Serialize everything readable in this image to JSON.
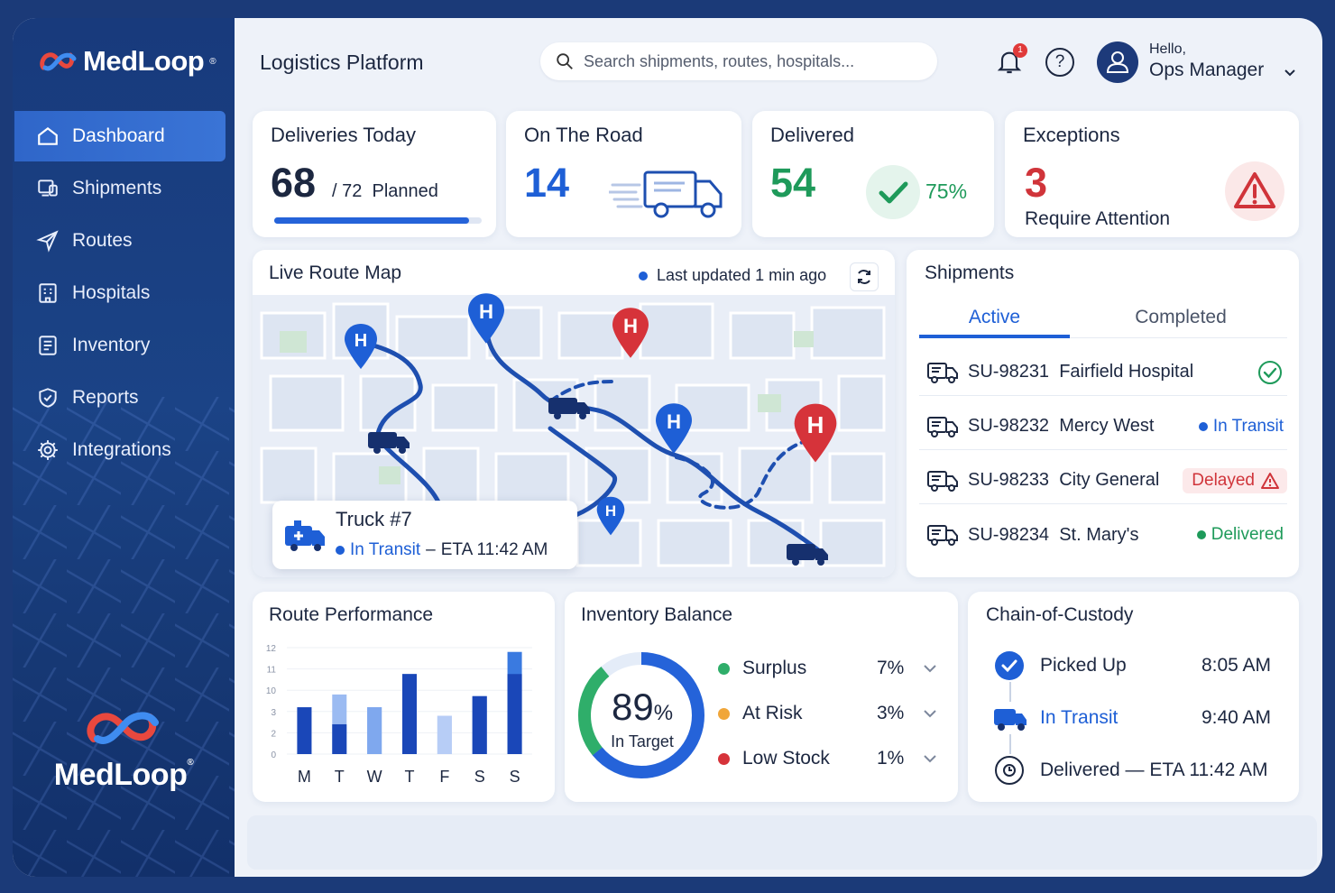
{
  "brand": {
    "name": "MedLoop",
    "tm": "®"
  },
  "sidebar": {
    "items": [
      {
        "label": "Dashboard",
        "icon": "home-icon",
        "active": true
      },
      {
        "label": "Shipments",
        "icon": "shipments-icon"
      },
      {
        "label": "Routes",
        "icon": "send-icon"
      },
      {
        "label": "Hospitals",
        "icon": "building-icon"
      },
      {
        "label": "Inventory",
        "icon": "inventory-icon"
      },
      {
        "label": "Reports",
        "icon": "shield-check-icon"
      },
      {
        "label": "Integrations",
        "icon": "gear-icon"
      }
    ]
  },
  "header": {
    "title": "Logistics Platform",
    "search_placeholder": "Search shipments, routes, hospitals...",
    "notification_count": "1",
    "help": "?",
    "greeting": "Hello,",
    "user": "Ops Manager"
  },
  "kpis": {
    "deliveries_today": {
      "title": "Deliveries Today",
      "value": "68",
      "planned": "/ 72  Planned",
      "progress": 0.94
    },
    "on_the_road": {
      "title": "On The Road",
      "value": "14"
    },
    "delivered": {
      "title": "Delivered",
      "value": "54",
      "percent": "75%"
    },
    "exceptions": {
      "title": "Exceptions",
      "value": "3",
      "note": "Require Attention"
    }
  },
  "map": {
    "title": "Live Route Map",
    "last_updated": "Last updated 1 min ago",
    "truck": {
      "name": "Truck #7",
      "status": "In Transit",
      "separator": "–",
      "eta": "ETA 11:42 AM"
    },
    "marker_letter": "H"
  },
  "shipments": {
    "title": "Shipments",
    "tabs": [
      "Active",
      "Completed"
    ],
    "active_tab": "Active",
    "rows": [
      {
        "id": "SU-98231",
        "hospital": "Fairfield Hospital",
        "status": "",
        "status_icon": "check-circle-icon"
      },
      {
        "id": "SU-98232",
        "hospital": "Mercy West",
        "status": "In Transit",
        "color": "#1e5fd6"
      },
      {
        "id": "SU-98233",
        "hospital": "City General",
        "status": "Delayed",
        "color": "#d0343a"
      },
      {
        "id": "SU-98234",
        "hospital": "St. Mary's",
        "status": "Delivered",
        "color": "#1e9a5a"
      }
    ]
  },
  "route_performance": {
    "title": "Route Performance",
    "chart_data": {
      "type": "bar",
      "categories": [
        "M",
        "T",
        "W",
        "T",
        "F",
        "S",
        "S"
      ],
      "y_ticks": [
        "12",
        "11",
        "10",
        "3",
        "2",
        "0"
      ],
      "series": [
        {
          "values": [
            5.5,
            7,
            5.5,
            9.4,
            4.5,
            6.8,
            12
          ]
        },
        {
          "values": [
            5.5,
            3.5,
            5.5,
            9.4,
            4.5,
            6.8,
            9.4
          ]
        }
      ],
      "ylim": [
        0,
        12.5
      ]
    }
  },
  "inventory": {
    "title": "Inventory Balance",
    "value": "89",
    "unit": "%",
    "caption": "In Target",
    "progress": 0.89,
    "legend": [
      {
        "label": "Surplus",
        "value": "7%",
        "color": "#2fae6a"
      },
      {
        "label": "At Risk",
        "value": "3%",
        "color": "#f0a63a"
      },
      {
        "label": "Low Stock",
        "value": "1%",
        "color": "#d6333a"
      }
    ]
  },
  "custody": {
    "title": "Chain-of-Custody",
    "steps": [
      {
        "label": "Picked Up",
        "time": "8:05 AM"
      },
      {
        "label": "In Transit",
        "time": "9:40 AM"
      },
      {
        "label": "Delivered — ETA 11:42 AM",
        "time": ""
      }
    ]
  },
  "colors": {
    "accent": "#1e5fd6",
    "navy": "#1b3a78",
    "danger": "#d0343a",
    "success": "#1e9a5a"
  }
}
